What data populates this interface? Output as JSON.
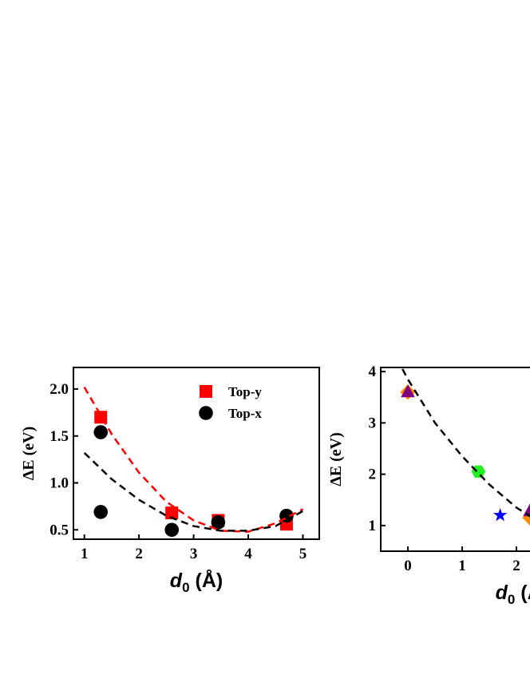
{
  "chart_data": [
    {
      "type": "scatter",
      "xlabel": [
        "d",
        "0",
        " (Å)"
      ],
      "ylabel": "ΔE (eV)",
      "xlim": [
        0.8,
        5.3
      ],
      "ylim": [
        0.4,
        2.23
      ],
      "xticks": [
        1,
        2,
        3,
        4,
        5
      ],
      "yticks": [
        {
          "value": 0.5,
          "label": "0.5"
        },
        {
          "value": 1,
          "label": "1.0"
        },
        {
          "value": 1.5,
          "label": "1.5"
        },
        {
          "value": 2,
          "label": "2.0"
        }
      ],
      "legend": "upper right",
      "series": [
        {
          "name": "Top-y",
          "color": "#ff0000",
          "marker": "square",
          "x": [
            1.3,
            2.6,
            3.45,
            4.7
          ],
          "values": [
            1.7,
            0.68,
            0.6,
            0.56
          ]
        },
        {
          "name": "Top-x",
          "color": "#000000",
          "marker": "circle",
          "x": [
            1.3,
            1.3,
            2.6,
            3.45,
            4.7
          ],
          "values": [
            1.54,
            0.69,
            0.5,
            0.58,
            0.65
          ]
        },
        {
          "color": "#ff0000",
          "style": "dashed",
          "x": [
            1,
            1.5,
            2,
            2.5,
            3,
            3.5,
            4,
            4.5,
            5
          ],
          "values": [
            2.02,
            1.52,
            1.11,
            0.8,
            0.6,
            0.49,
            0.48,
            0.57,
            0.72
          ]
        },
        {
          "color": "#000000",
          "style": "dashed",
          "x": [
            1,
            1.5,
            2,
            2.5,
            3,
            3.5,
            4,
            4.5,
            5
          ],
          "values": [
            1.32,
            1.04,
            0.82,
            0.65,
            0.54,
            0.49,
            0.49,
            0.54,
            0.7
          ]
        }
      ]
    },
    {
      "type": "scatter",
      "xlabel": [
        "d",
        "0",
        " (Å)"
      ],
      "ylabel": "ΔE (eV)",
      "xlim": [
        -0.5,
        4.5
      ],
      "ylim": [
        0.5,
        4.08
      ],
      "xticks": [
        0,
        1,
        2
      ],
      "yticks": [
        1,
        2,
        3,
        4
      ],
      "legend": "upper right",
      "series": [
        {
          "color": "#0000ff",
          "marker": "star",
          "x": [
            1.7
          ],
          "values": [
            1.2
          ]
        },
        {
          "color": "#22ee22",
          "marker": "hexagon",
          "x": [
            1.3
          ],
          "values": [
            2.05
          ]
        },
        {
          "color": "#ff8c00",
          "marker": "diamond",
          "x": [
            0,
            2.25
          ],
          "values": [
            3.6,
            1.15
          ]
        },
        {
          "color": "#800080",
          "marker": "triangle",
          "x": [
            0,
            2.25
          ],
          "values": [
            3.6,
            1.28
          ]
        },
        {
          "color": "#000000",
          "style": "dashed",
          "x": [
            -0.1,
            0,
            0.5,
            1,
            1.5,
            2,
            2.3
          ],
          "values": [
            4.05,
            3.85,
            3.0,
            2.35,
            1.8,
            1.35,
            1.15
          ]
        }
      ]
    }
  ]
}
